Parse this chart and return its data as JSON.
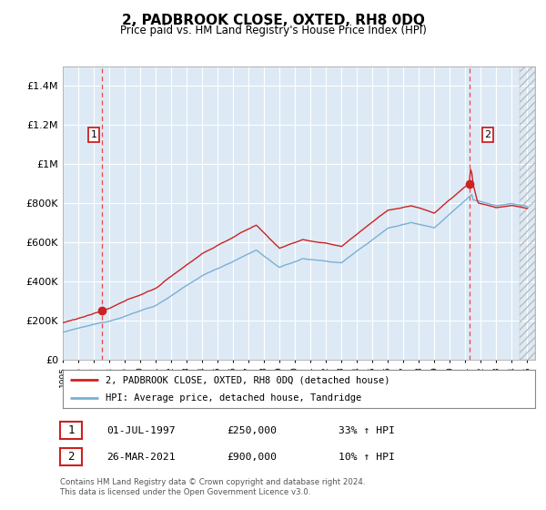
{
  "title": "2, PADBROOK CLOSE, OXTED, RH8 0DQ",
  "subtitle": "Price paid vs. HM Land Registry's House Price Index (HPI)",
  "ylim": [
    0,
    1500000
  ],
  "yticks": [
    0,
    200000,
    400000,
    600000,
    800000,
    1000000,
    1200000,
    1400000
  ],
  "ytick_labels": [
    "£0",
    "£200K",
    "£400K",
    "£600K",
    "£800K",
    "£1M",
    "£1.2M",
    "£1.4M"
  ],
  "x_start_year": 1995,
  "x_end_year": 2025,
  "sale1_price": 250000,
  "sale1_x": 1997.5,
  "sale2_price": 900000,
  "sale2_x": 2021.24,
  "hpi_color": "#7bafd4",
  "price_color": "#cc2222",
  "bg_color": "#ddeaf5",
  "grid_color": "#ffffff",
  "dashed_line_color": "#ee4444",
  "legend_line1": "2, PADBROOK CLOSE, OXTED, RH8 0DQ (detached house)",
  "legend_line2": "HPI: Average price, detached house, Tandridge",
  "footer": "Contains HM Land Registry data © Crown copyright and database right 2024.\nThis data is licensed under the Open Government Licence v3.0."
}
